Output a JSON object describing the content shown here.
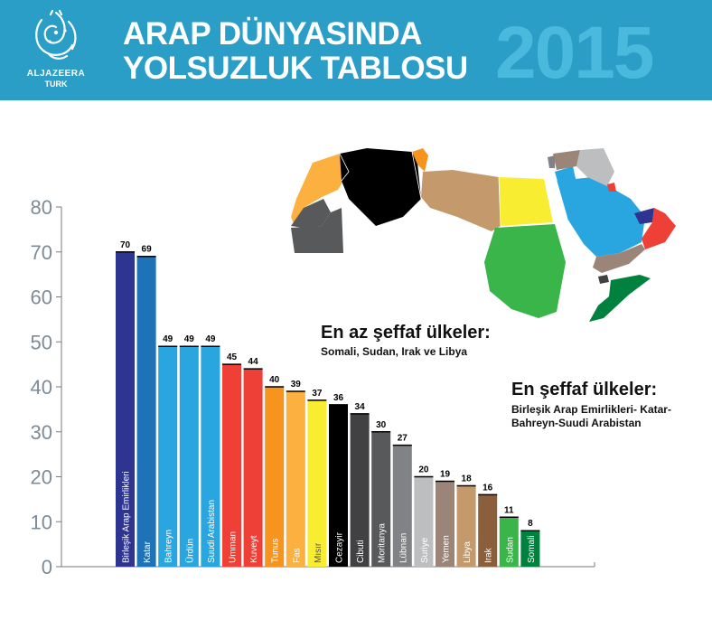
{
  "header": {
    "logo_name": "ALJAZEERA",
    "logo_sub": "TURK",
    "title_line1": "ARAP DÜNYASINDA",
    "title_line2": "YOLSUZLUK TABLOSU",
    "year": "2015",
    "colors": {
      "banner": "#2a9ec6",
      "year": "#4ab9de"
    }
  },
  "notes": {
    "least_title": "En az şeffaf ülkeler:",
    "least_body": "Somali, Sudan, Irak ve Libya",
    "most_title": "En şeffaf ülkeler:",
    "most_body_line1": "Birleşik Arap Emirlikleri- Katar-",
    "most_body_line2": "Bahreyn-Suudi Arabistan"
  },
  "chart_data": {
    "type": "bar",
    "categories": [
      "Birleşik Arap Emirlikleri",
      "Katar",
      "Bahreyn",
      "Ürdün",
      "Suudi Arabistan",
      "Umman",
      "Kuveyt",
      "Tunus",
      "Fas",
      "Mısır",
      "Cezayir",
      "Cibuti",
      "Moritanya",
      "Lübnan",
      "Suriye",
      "Yemen",
      "Libya",
      "Irak",
      "Sudan",
      "Somali"
    ],
    "values": [
      70,
      69,
      49,
      49,
      49,
      45,
      44,
      40,
      39,
      37,
      36,
      34,
      30,
      27,
      20,
      19,
      18,
      16,
      11,
      8
    ],
    "colors": [
      "#2e3591",
      "#1d72b8",
      "#29a6e0",
      "#29a6e0",
      "#29a6e0",
      "#ee4036",
      "#ee4036",
      "#f7941d",
      "#fbb040",
      "#f9ed32",
      "#000000",
      "#414042",
      "#58595b",
      "#808285",
      "#bcbec0",
      "#9b8579",
      "#c49a6c",
      "#8b5e3c",
      "#39b54a",
      "#00813e"
    ],
    "yticks": [
      0,
      10,
      20,
      30,
      40,
      50,
      60,
      70,
      80
    ],
    "ylim": [
      0,
      80
    ],
    "grid": false
  }
}
